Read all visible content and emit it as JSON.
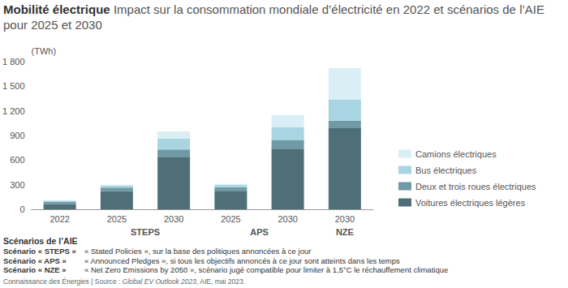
{
  "chart_data": {
    "type": "bar",
    "title": "Mobilité électrique",
    "subtitle": "Impact sur la consommation mondiale d’électricité en 2022 et scénarios de l’AIE pour 2025 et 2030",
    "y_label": "(TWh)",
    "categories": [
      "2022",
      "2025",
      "2030",
      "2025",
      "2030",
      "2030"
    ],
    "category_groups": [
      null,
      "STEPS",
      "STEPS",
      "APS",
      "APS",
      "NZE"
    ],
    "series": [
      {
        "name": "Voitures électriques légères",
        "color": "#4e6f78",
        "values": [
          65,
          220,
          640,
          225,
          740,
          990
        ]
      },
      {
        "name": "Deux et trois roues électriques",
        "color": "#6f9aa6",
        "values": [
          30,
          45,
          90,
          45,
          105,
          90
        ]
      },
      {
        "name": "Bus électriques",
        "color": "#a8d5e1",
        "values": [
          12,
          25,
          130,
          28,
          155,
          260
        ]
      },
      {
        "name": "Camions électriques",
        "color": "#daeff5",
        "values": [
          3,
          10,
          90,
          12,
          150,
          380
        ]
      }
    ],
    "ylim": [
      0,
      1800
    ],
    "yticks": [
      0,
      300,
      600,
      900,
      {
        "value": 1200,
        "label": "1 200"
      },
      {
        "value": 1500,
        "label": "1 500"
      },
      {
        "value": 1800,
        "label": "1 800"
      }
    ],
    "stacked": true,
    "grid": false,
    "legend": "right"
  },
  "footer": {
    "heading": "Scénarios de l’AIE",
    "rows": [
      {
        "term": "Scénario « STEPS »",
        "text": "« Stated Policies », sur la base des politiques annoncées à ce jour"
      },
      {
        "term": "Scénario « APS »",
        "text": "« Announced Pledges », si tous les objectifs annoncés à ce jour sont atteints dans les temps"
      },
      {
        "term": "Scénario « NZE »",
        "text": "« Net Zero Emissions by 2050 », scénario jugé compatible pour limiter à 1,5°C le réchauffement climatique"
      }
    ],
    "source": [
      "Connaissance des Énergies | Source : ",
      "Global EV Outlook 2023",
      ", AIE, mai 2023."
    ]
  }
}
